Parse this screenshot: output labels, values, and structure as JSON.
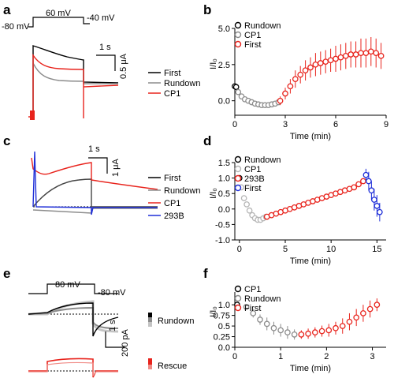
{
  "colors": {
    "first": "#000000",
    "rundown": "#8c8c8c",
    "rundown_light": "#c4c4c4",
    "cp1": "#e8231c",
    "b293": "#1f2fd8"
  },
  "panels": {
    "a": {
      "label": "a",
      "protocol": {
        "hold": "-80 mV",
        "step": "60 mV",
        "post": "-40 mV"
      },
      "scalebar": {
        "time": "1 s",
        "amp": "0.5 μA"
      },
      "legend": [
        "First",
        "Rundown",
        "CP1"
      ]
    },
    "c": {
      "label": "c",
      "scalebar": {
        "time": "1 s",
        "amp": "1 μA"
      },
      "legend": [
        "First",
        "Rundown",
        "CP1",
        "293B"
      ]
    },
    "e": {
      "label": "e",
      "protocol": {
        "step": "80 mV",
        "post": "-80 mV"
      },
      "scalebar": {
        "time": "1 s",
        "amp": "200 pA"
      },
      "tags": [
        "Rundown",
        "Rescue"
      ]
    }
  },
  "chart_data": [
    {
      "panel": "b",
      "type": "scatter",
      "xlabel": "Time (min)",
      "ylabel": "I/I₀",
      "xlim": [
        0,
        9
      ],
      "ylim": [
        -1,
        5
      ],
      "xticks": [
        0,
        3,
        6,
        9
      ],
      "yticks": [
        0.0,
        2.5,
        5.0
      ],
      "ytick_labels": [
        "0.0",
        "2.5",
        "5.0"
      ],
      "legend_position": "top-left",
      "series": [
        {
          "name": "Rundown",
          "color": "#000000",
          "x": [
            0.0,
            0.08
          ],
          "y": [
            1.0,
            0.95
          ]
        },
        {
          "name": "CP1",
          "color": "#8c8c8c",
          "x": [
            0.2,
            0.4,
            0.6,
            0.8,
            1.0,
            1.2,
            1.4,
            1.6,
            1.8,
            2.0,
            2.2,
            2.4,
            2.6
          ],
          "y": [
            0.6,
            0.3,
            0.1,
            0.0,
            -0.1,
            -0.2,
            -0.25,
            -0.3,
            -0.3,
            -0.3,
            -0.25,
            -0.2,
            -0.1
          ]
        },
        {
          "name": "First",
          "color": "#e8231c",
          "x": [
            2.7,
            3.0,
            3.3,
            3.6,
            3.9,
            4.2,
            4.5,
            4.8,
            5.1,
            5.4,
            5.7,
            6.0,
            6.3,
            6.6,
            6.9,
            7.2,
            7.5,
            7.8,
            8.1,
            8.4,
            8.7
          ],
          "y": [
            0.0,
            0.5,
            1.0,
            1.5,
            1.8,
            2.1,
            2.3,
            2.5,
            2.6,
            2.7,
            2.8,
            2.9,
            3.0,
            3.1,
            3.2,
            3.2,
            3.3,
            3.3,
            3.4,
            3.3,
            3.1
          ],
          "err": [
            0.3,
            0.4,
            0.5,
            0.6,
            0.6,
            0.7,
            0.7,
            0.8,
            0.8,
            0.8,
            0.8,
            0.9,
            0.9,
            0.9,
            0.9,
            0.9,
            1.0,
            1.0,
            1.0,
            1.0,
            0.9
          ]
        }
      ]
    },
    {
      "panel": "d",
      "type": "scatter",
      "xlabel": "Time (min)",
      "ylabel": "I/I₀",
      "xlim": [
        -0.5,
        16
      ],
      "ylim": [
        -1,
        1.5
      ],
      "xticks": [
        0,
        5,
        10,
        15
      ],
      "yticks": [
        -1.0,
        -0.5,
        0.0,
        0.5,
        1.0,
        1.5
      ],
      "ytick_labels": [
        "-1.0",
        "-0.5",
        "0.0",
        "0.5",
        "1.0",
        "1.5"
      ],
      "legend_position": "top-left",
      "series": [
        {
          "name": "Rundown",
          "color": "#000000",
          "x": [
            0.0
          ],
          "y": [
            1.0
          ]
        },
        {
          "name": "CP1",
          "color": "#b5b5b5",
          "x": [
            0.2,
            0.5,
            0.8,
            1.1,
            1.4,
            1.7,
            2.0,
            2.3,
            2.6,
            2.9
          ],
          "y": [
            0.7,
            0.35,
            0.15,
            -0.05,
            -0.2,
            -0.3,
            -0.35,
            -0.35,
            -0.3,
            -0.25
          ]
        },
        {
          "name": "293B",
          "color": "#e8231c",
          "x": [
            3.0,
            3.5,
            4.0,
            4.5,
            5.0,
            5.5,
            6.0,
            6.5,
            7.0,
            7.5,
            8.0,
            8.5,
            9.0,
            9.5,
            10.0,
            10.5,
            11.0,
            11.5,
            12.0,
            12.5,
            13.0,
            13.5
          ],
          "y": [
            -0.25,
            -0.2,
            -0.15,
            -0.1,
            -0.05,
            0.0,
            0.05,
            0.1,
            0.15,
            0.2,
            0.25,
            0.3,
            0.35,
            0.4,
            0.45,
            0.5,
            0.55,
            0.6,
            0.65,
            0.7,
            0.8,
            0.9
          ]
        },
        {
          "name": "First",
          "color": "#1f2fd8",
          "x": [
            13.8,
            14.1,
            14.4,
            14.7,
            15.0,
            15.3
          ],
          "y": [
            1.1,
            0.9,
            0.6,
            0.3,
            0.1,
            -0.1
          ],
          "err": [
            0.2,
            0.3,
            0.3,
            0.35,
            0.35,
            0.3
          ]
        }
      ]
    },
    {
      "panel": "f",
      "type": "scatter",
      "xlabel": "Time (min)",
      "ylabel": "I/I₀",
      "xlim": [
        0,
        3.3
      ],
      "ylim": [
        0,
        1.3
      ],
      "xticks": [
        0,
        1,
        2,
        3
      ],
      "yticks": [
        0.0,
        0.25,
        0.5,
        0.75,
        1.0
      ],
      "ytick_labels": [
        "0.0",
        "0.25",
        "0.5",
        "0.75",
        "1.0"
      ],
      "legend_position": "top-left",
      "series": [
        {
          "name": "CP1",
          "color": "#000000",
          "x": [
            0.05
          ],
          "y": [
            1.0
          ]
        },
        {
          "name": "Rundown",
          "color": "#8c8c8c",
          "x": [
            0.25,
            0.4,
            0.55,
            0.7,
            0.85,
            1.0,
            1.15,
            1.3
          ],
          "y": [
            0.95,
            0.8,
            0.65,
            0.55,
            0.45,
            0.4,
            0.35,
            0.3
          ],
          "err": [
            0.05,
            0.1,
            0.12,
            0.15,
            0.15,
            0.15,
            0.15,
            0.12
          ]
        },
        {
          "name": "First",
          "color": "#e8231c",
          "x": [
            1.45,
            1.6,
            1.75,
            1.9,
            2.05,
            2.2,
            2.35,
            2.5,
            2.65,
            2.8,
            2.95,
            3.1
          ],
          "y": [
            0.3,
            0.32,
            0.35,
            0.38,
            0.4,
            0.45,
            0.5,
            0.6,
            0.7,
            0.8,
            0.9,
            1.0
          ],
          "err": [
            0.1,
            0.12,
            0.12,
            0.13,
            0.15,
            0.15,
            0.18,
            0.2,
            0.2,
            0.2,
            0.2,
            0.15
          ]
        }
      ]
    }
  ]
}
